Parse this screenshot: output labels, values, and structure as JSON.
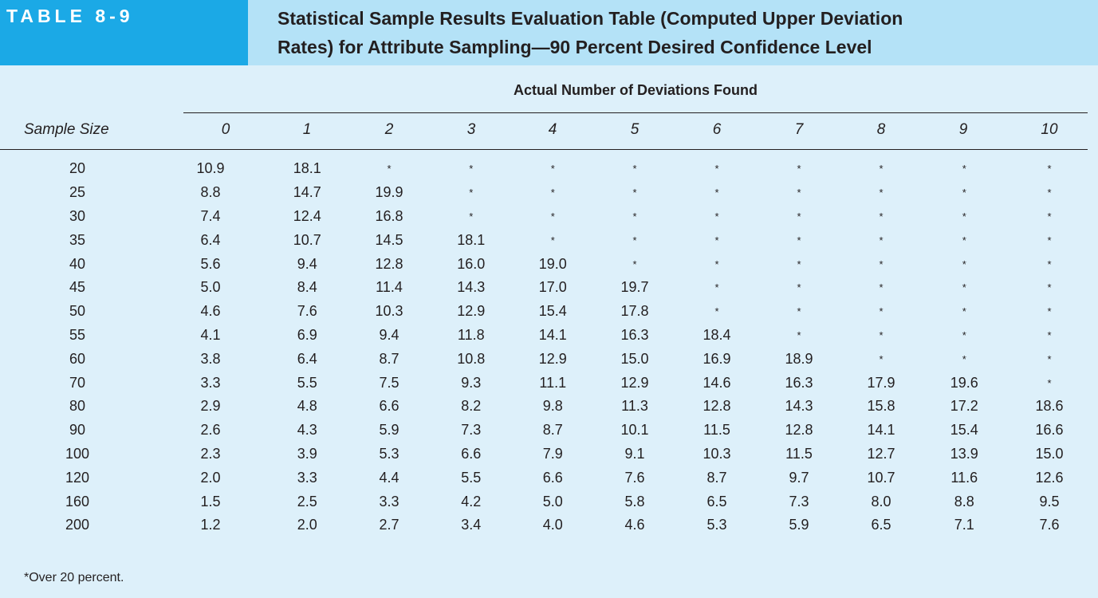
{
  "header": {
    "tag": "TABLE 8-9",
    "title_line1": "Statistical Sample Results Evaluation Table (Computed Upper Deviation",
    "title_line2": "Rates) for Attribute Sampling—90 Percent Desired Confidence Level"
  },
  "table": {
    "column_group_header": "Actual Number of Deviations Found",
    "row_header": "Sample Size",
    "columns": [
      "0",
      "1",
      "2",
      "3",
      "4",
      "5",
      "6",
      "7",
      "8",
      "9",
      "10"
    ],
    "rows": [
      {
        "size": "20",
        "values": [
          "10.9",
          "18.1",
          "*",
          "*",
          "*",
          "*",
          "*",
          "*",
          "*",
          "*",
          "*"
        ]
      },
      {
        "size": "25",
        "values": [
          "8.8",
          "14.7",
          "19.9",
          "*",
          "*",
          "*",
          "*",
          "*",
          "*",
          "*",
          "*"
        ]
      },
      {
        "size": "30",
        "values": [
          "7.4",
          "12.4",
          "16.8",
          "*",
          "*",
          "*",
          "*",
          "*",
          "*",
          "*",
          "*"
        ]
      },
      {
        "size": "35",
        "values": [
          "6.4",
          "10.7",
          "14.5",
          "18.1",
          "*",
          "*",
          "*",
          "*",
          "*",
          "*",
          "*"
        ]
      },
      {
        "size": "40",
        "values": [
          "5.6",
          "9.4",
          "12.8",
          "16.0",
          "19.0",
          "*",
          "*",
          "*",
          "*",
          "*",
          "*"
        ]
      },
      {
        "size": "45",
        "values": [
          "5.0",
          "8.4",
          "11.4",
          "14.3",
          "17.0",
          "19.7",
          "*",
          "*",
          "*",
          "*",
          "*"
        ]
      },
      {
        "size": "50",
        "values": [
          "4.6",
          "7.6",
          "10.3",
          "12.9",
          "15.4",
          "17.8",
          "*",
          "*",
          "*",
          "*",
          "*"
        ]
      },
      {
        "size": "55",
        "values": [
          "4.1",
          "6.9",
          "9.4",
          "11.8",
          "14.1",
          "16.3",
          "18.4",
          "*",
          "*",
          "*",
          "*"
        ]
      },
      {
        "size": "60",
        "values": [
          "3.8",
          "6.4",
          "8.7",
          "10.8",
          "12.9",
          "15.0",
          "16.9",
          "18.9",
          "*",
          "*",
          "*"
        ]
      },
      {
        "size": "70",
        "values": [
          "3.3",
          "5.5",
          "7.5",
          "9.3",
          "11.1",
          "12.9",
          "14.6",
          "16.3",
          "17.9",
          "19.6",
          "*"
        ]
      },
      {
        "size": "80",
        "values": [
          "2.9",
          "4.8",
          "6.6",
          "8.2",
          "9.8",
          "11.3",
          "12.8",
          "14.3",
          "15.8",
          "17.2",
          "18.6"
        ]
      },
      {
        "size": "90",
        "values": [
          "2.6",
          "4.3",
          "5.9",
          "7.3",
          "8.7",
          "10.1",
          "11.5",
          "12.8",
          "14.1",
          "15.4",
          "16.6"
        ]
      },
      {
        "size": "100",
        "values": [
          "2.3",
          "3.9",
          "5.3",
          "6.6",
          "7.9",
          "9.1",
          "10.3",
          "11.5",
          "12.7",
          "13.9",
          "15.0"
        ]
      },
      {
        "size": "120",
        "values": [
          "2.0",
          "3.3",
          "4.4",
          "5.5",
          "6.6",
          "7.6",
          "8.7",
          "9.7",
          "10.7",
          "11.6",
          "12.6"
        ]
      },
      {
        "size": "160",
        "values": [
          "1.5",
          "2.5",
          "3.3",
          "4.2",
          "5.0",
          "5.8",
          "6.5",
          "7.3",
          "8.0",
          "8.8",
          "9.5"
        ]
      },
      {
        "size": "200",
        "values": [
          "1.2",
          "2.0",
          "2.7",
          "3.4",
          "4.0",
          "4.6",
          "5.3",
          "5.9",
          "6.5",
          "7.1",
          "7.6"
        ]
      }
    ]
  },
  "footnote": "*Over 20 percent."
}
